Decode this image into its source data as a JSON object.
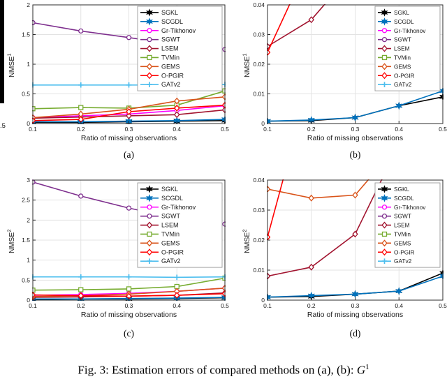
{
  "figure": {
    "caption_prefix": "Fig. 3: Estimation errors of compared methods on (a), (b): ",
    "caption_symbol": "G",
    "caption_symbol_sup": "1",
    "cropped_left_tick": ".5"
  },
  "methods": [
    {
      "name": "SGKL",
      "color": "#000000",
      "marker": "hexagram"
    },
    {
      "name": "SCGDL",
      "color": "#0072BD",
      "marker": "hexagram"
    },
    {
      "name": "Gr-Tikhonov",
      "color": "#FF00FF",
      "marker": "circle"
    },
    {
      "name": "SGWT",
      "color": "#7E2F8E",
      "marker": "circle"
    },
    {
      "name": "LSEM",
      "color": "#A2142F",
      "marker": "diamond"
    },
    {
      "name": "TVMin",
      "color": "#77AC30",
      "marker": "square"
    },
    {
      "name": "GEMS",
      "color": "#D95319",
      "marker": "diamond"
    },
    {
      "name": "O-PGIR",
      "color": "#FF0000",
      "marker": "diamond"
    },
    {
      "name": "GATv2",
      "color": "#4DBEEE",
      "marker": "plus"
    }
  ],
  "chart_data": [
    {
      "type": "line",
      "label": "(a)",
      "ylabel": "NMSE",
      "ylabel_sup": "1",
      "xlabel": "Ratio of missing observations",
      "x": [
        0.1,
        0.2,
        0.3,
        0.4,
        0.5
      ],
      "xtick_labels": [
        "0.1",
        "0.2",
        "0.3",
        "0.4",
        "0.5"
      ],
      "ylim": [
        0,
        2
      ],
      "yticks": [
        0,
        0.5,
        1,
        1.5,
        2
      ],
      "ytick_labels": [
        "0",
        "0.5",
        "1",
        "1.5",
        "2"
      ],
      "grid": true,
      "legend_position": "northeast",
      "series": [
        {
          "name": "SGKL",
          "values": [
            0.02,
            0.02,
            0.03,
            0.04,
            0.05
          ]
        },
        {
          "name": "SCGDL",
          "values": [
            0.03,
            0.03,
            0.04,
            0.05,
            0.07
          ]
        },
        {
          "name": "Gr-Tikhonov",
          "values": [
            0.1,
            0.13,
            0.16,
            0.22,
            0.3
          ]
        },
        {
          "name": "SGWT",
          "values": [
            1.7,
            1.56,
            1.45,
            1.33,
            1.25
          ]
        },
        {
          "name": "LSEM",
          "values": [
            0.09,
            0.11,
            0.13,
            0.15,
            0.23
          ]
        },
        {
          "name": "TVMin",
          "values": [
            0.25,
            0.27,
            0.26,
            0.31,
            0.55
          ]
        },
        {
          "name": "GEMS",
          "values": [
            0.1,
            0.16,
            0.24,
            0.38,
            0.45
          ]
        },
        {
          "name": "O-PGIR",
          "values": [
            0.05,
            0.07,
            0.2,
            0.26,
            0.31
          ]
        },
        {
          "name": "GATv2",
          "values": [
            0.65,
            0.65,
            0.65,
            0.65,
            0.66
          ]
        }
      ]
    },
    {
      "type": "line",
      "label": "(b)",
      "ylabel": "NMSE",
      "ylabel_sup": "1",
      "xlabel": "Ratio of missing observations",
      "x": [
        0.1,
        0.2,
        0.3,
        0.4,
        0.5
      ],
      "xtick_labels": [
        "0.1",
        "0.2",
        "0.3",
        "0.4",
        "0.5"
      ],
      "ylim": [
        0,
        0.04
      ],
      "yticks": [
        0,
        0.01,
        0.02,
        0.03,
        0.04
      ],
      "ytick_labels": [
        "0",
        "0.01",
        "0.02",
        "0.03",
        "0.04"
      ],
      "grid": true,
      "legend_position": "northeast",
      "series": [
        {
          "name": "SGKL",
          "values": [
            0.0008,
            0.001,
            0.002,
            0.006,
            0.009
          ]
        },
        {
          "name": "SCGDL",
          "values": [
            0.0008,
            0.0012,
            0.002,
            0.006,
            0.011
          ]
        },
        {
          "name": "LSEM",
          "values": [
            0.026,
            0.035,
            0.052,
            null,
            null
          ]
        },
        {
          "name": "O-PGIR",
          "values": [
            0.024,
            0.056,
            null,
            null,
            null
          ]
        }
      ]
    },
    {
      "type": "line",
      "label": "(c)",
      "ylabel": "NMSE",
      "ylabel_sup": "2",
      "xlabel": "Ratio of missing observations",
      "x": [
        0.1,
        0.2,
        0.3,
        0.4,
        0.5
      ],
      "xtick_labels": [
        "0.1",
        "0.2",
        "0.3",
        "0.4",
        "0.5"
      ],
      "ylim": [
        0,
        3
      ],
      "yticks": [
        0,
        0.5,
        1,
        1.5,
        2,
        2.5,
        3
      ],
      "ytick_labels": [
        "0",
        "0.5",
        "1",
        "1.5",
        "2",
        "2.5",
        "3"
      ],
      "grid": true,
      "legend_position": "northeast",
      "series": [
        {
          "name": "SGKL",
          "values": [
            0.02,
            0.03,
            0.03,
            0.04,
            0.06
          ]
        },
        {
          "name": "SCGDL",
          "values": [
            0.03,
            0.03,
            0.04,
            0.05,
            0.07
          ]
        },
        {
          "name": "Gr-Tikhonov",
          "values": [
            0.12,
            0.14,
            0.17,
            0.22,
            0.3
          ]
        },
        {
          "name": "SGWT",
          "values": [
            2.95,
            2.6,
            2.3,
            2.05,
            1.9
          ]
        },
        {
          "name": "LSEM",
          "values": [
            0.07,
            0.08,
            0.1,
            0.12,
            0.18
          ]
        },
        {
          "name": "TVMin",
          "values": [
            0.25,
            0.26,
            0.28,
            0.34,
            0.55
          ]
        },
        {
          "name": "GEMS",
          "values": [
            0.09,
            0.11,
            0.15,
            0.22,
            0.3
          ]
        },
        {
          "name": "O-PGIR",
          "values": [
            0.13,
            0.11,
            0.1,
            0.12,
            0.16
          ]
        },
        {
          "name": "GATv2",
          "values": [
            0.58,
            0.58,
            0.58,
            0.57,
            0.58
          ]
        }
      ]
    },
    {
      "type": "line",
      "label": "(d)",
      "ylabel": "NMSE",
      "ylabel_sup": "2",
      "xlabel": "Ratio of missing observations",
      "x": [
        0.1,
        0.2,
        0.3,
        0.4,
        0.5
      ],
      "xtick_labels": [
        "0.1",
        "0.2",
        "0.3",
        "0.4",
        "0.5"
      ],
      "ylim": [
        0,
        0.04
      ],
      "yticks": [
        0,
        0.01,
        0.02,
        0.03,
        0.04
      ],
      "ytick_labels": [
        "0",
        "0.01",
        "0.02",
        "0.03",
        "0.04"
      ],
      "grid": true,
      "legend_position": "northeast",
      "series": [
        {
          "name": "SGKL",
          "values": [
            0.001,
            0.0012,
            0.002,
            0.003,
            0.009
          ]
        },
        {
          "name": "SCGDL",
          "values": [
            0.001,
            0.0015,
            0.002,
            0.003,
            0.008
          ]
        },
        {
          "name": "LSEM",
          "values": [
            0.008,
            0.011,
            0.022,
            0.052,
            null
          ]
        },
        {
          "name": "GEMS",
          "values": [
            0.037,
            0.034,
            0.035,
            0.052,
            null
          ]
        },
        {
          "name": "O-PGIR",
          "values": [
            0.021,
            0.075,
            null,
            null,
            null
          ]
        }
      ]
    }
  ]
}
